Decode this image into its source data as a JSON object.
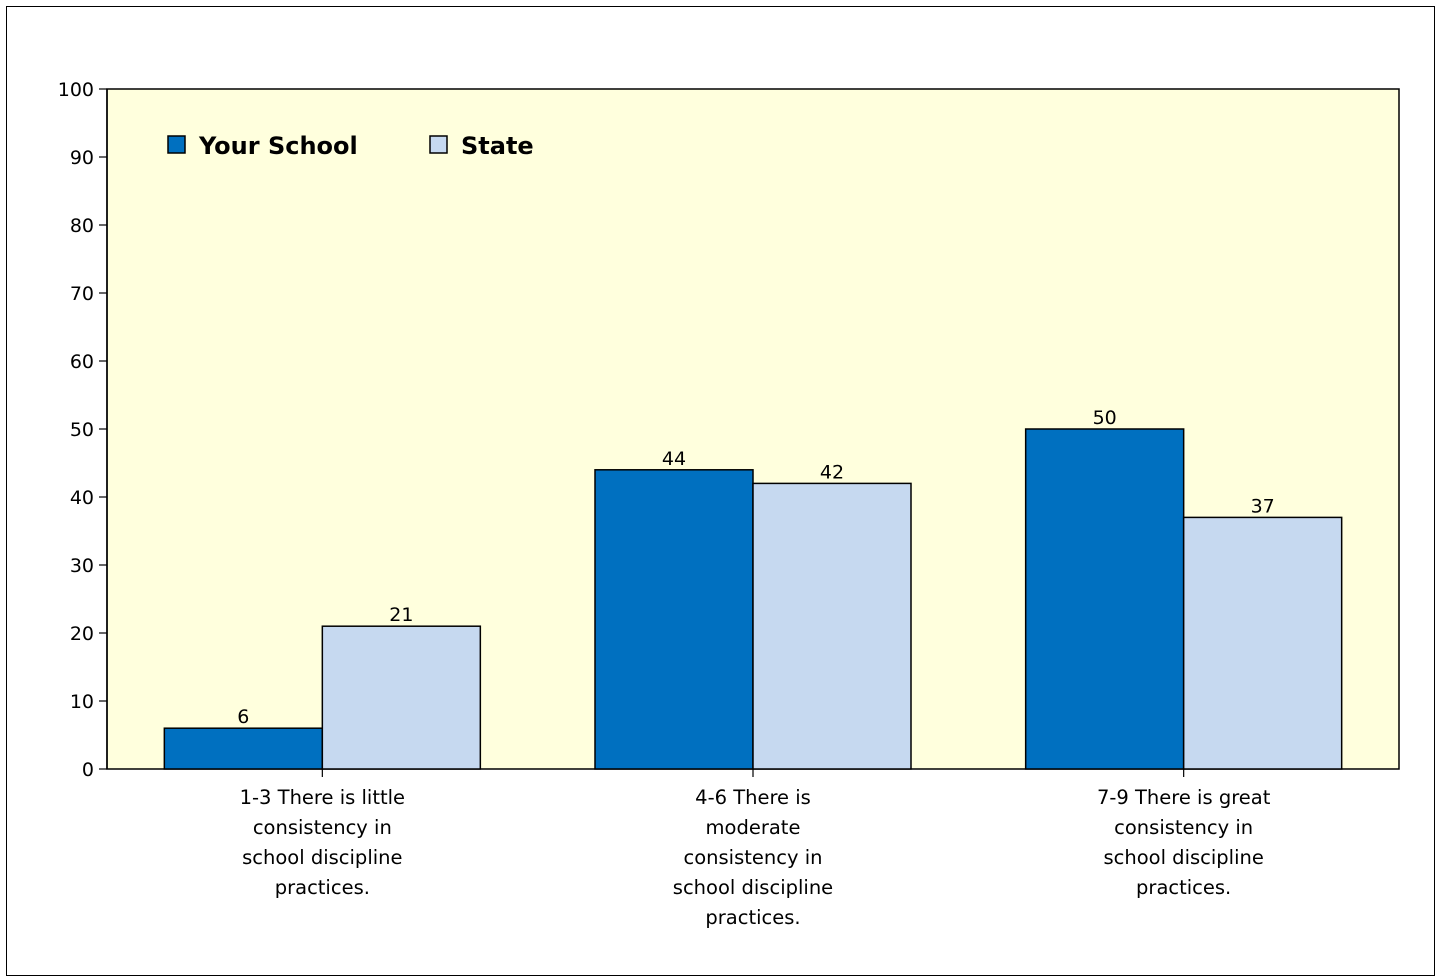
{
  "chart_data": {
    "type": "bar",
    "categories": [
      "1-3 There is little consistency in school discipline practices.",
      "4-6 There is moderate consistency in school discipline practices.",
      "7-9 There is great consistency in school discipline practices."
    ],
    "category_lines": [
      [
        "1-3 There is little",
        "consistency in",
        "school discipline",
        "practices."
      ],
      [
        "4-6 There is",
        "moderate",
        "consistency in",
        "school discipline",
        "practices."
      ],
      [
        "7-9 There is great",
        "consistency in",
        "school discipline",
        "practices."
      ]
    ],
    "series": [
      {
        "name": "Your School",
        "values": [
          6,
          44,
          50
        ],
        "color": "#0070C0"
      },
      {
        "name": "State",
        "values": [
          21,
          42,
          37
        ],
        "color": "#C6D9F0"
      }
    ],
    "ylim": [
      0,
      100
    ],
    "yticks": [
      0,
      10,
      20,
      30,
      40,
      50,
      60,
      70,
      80,
      90,
      100
    ],
    "grid": false,
    "legend_position": "top-left",
    "plot_background": "#FFFFDD",
    "title": "",
    "xlabel": "",
    "ylabel": ""
  }
}
